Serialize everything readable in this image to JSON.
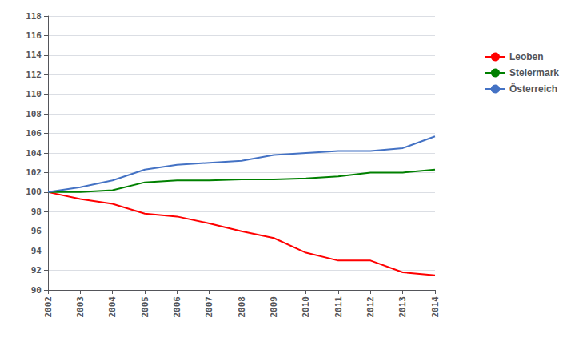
{
  "chart_data": {
    "type": "line",
    "x": [
      2002,
      2003,
      2004,
      2005,
      2006,
      2007,
      2008,
      2009,
      2010,
      2011,
      2012,
      2013,
      2014
    ],
    "series": [
      {
        "name": "Leoben",
        "color": "#ff0000",
        "values": [
          100.0,
          99.3,
          98.8,
          97.8,
          97.5,
          96.8,
          96.0,
          95.3,
          93.8,
          93.0,
          93.0,
          91.8,
          91.5
        ]
      },
      {
        "name": "Steiermark",
        "color": "#008000",
        "values": [
          100.0,
          100.0,
          100.2,
          101.0,
          101.2,
          101.2,
          101.3,
          101.3,
          101.4,
          101.6,
          102.0,
          102.0,
          102.3
        ]
      },
      {
        "name": "Österreich",
        "color": "#4472c4",
        "values": [
          100.0,
          100.5,
          101.2,
          102.3,
          102.8,
          103.0,
          103.2,
          103.8,
          104.0,
          104.2,
          104.2,
          104.5,
          105.7
        ]
      }
    ],
    "xlim": [
      2002,
      2014
    ],
    "xticks": [
      2002,
      2003,
      2004,
      2005,
      2006,
      2007,
      2008,
      2009,
      2010,
      2011,
      2012,
      2013,
      2014
    ],
    "ylim": [
      90,
      118
    ],
    "yticks": [
      90,
      92,
      94,
      96,
      98,
      100,
      102,
      104,
      106,
      108,
      110,
      112,
      114,
      116,
      118
    ],
    "grid": true,
    "legend": "right"
  }
}
